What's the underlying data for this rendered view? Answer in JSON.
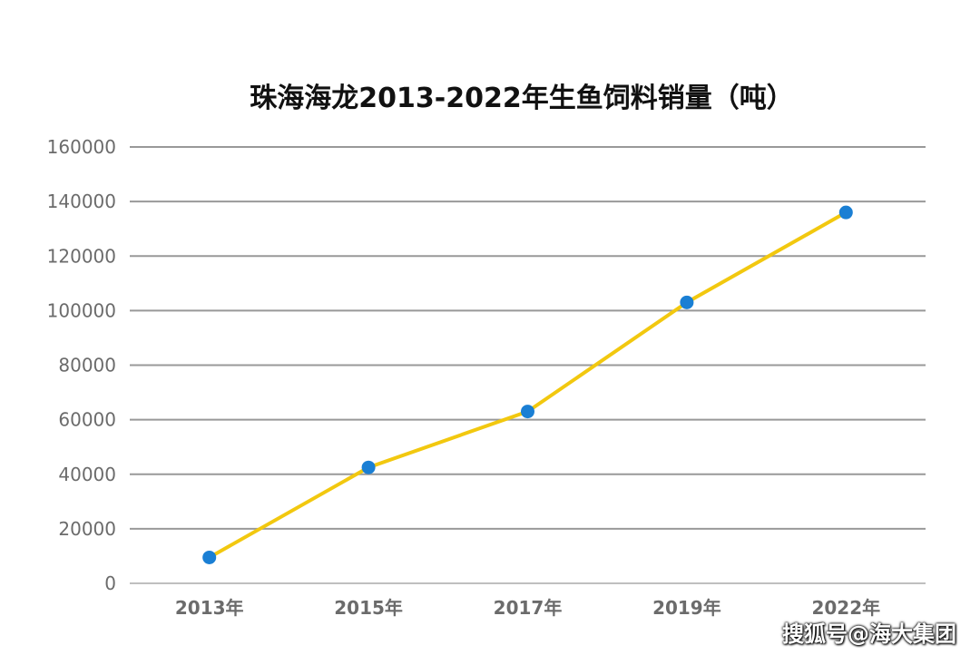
{
  "chart_data": {
    "type": "line",
    "title": "珠海海龙2013-2022年生鱼饲料销量（吨）",
    "categories": [
      "2013年",
      "2015年",
      "2017年",
      "2019年",
      "2022年"
    ],
    "series": [
      {
        "values": [
          9500,
          42500,
          63000,
          103000,
          136000
        ]
      }
    ],
    "ylim": [
      0,
      160000
    ],
    "yticks": [
      "0",
      "20000",
      "40000",
      "60000",
      "80000",
      "100000",
      "120000",
      "140000",
      "160000"
    ],
    "grid": true,
    "colors": {
      "line": "#F2C80F",
      "marker": "#1A7FD4",
      "grid": "#999999",
      "axis": "#BFBFBF"
    }
  },
  "watermark": "搜狐号@海大集团"
}
